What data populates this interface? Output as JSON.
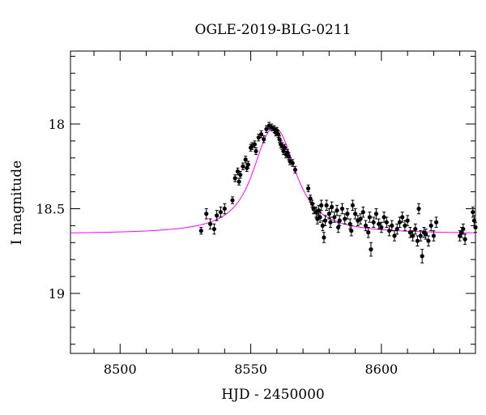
{
  "chart_data": {
    "type": "scatter",
    "title": "OGLE-2019-BLG-0211",
    "xlabel": "HJD - 2450000",
    "ylabel": "I magnitude",
    "xlim": [
      8481,
      8636
    ],
    "ylim": [
      18.0,
      19.0
    ],
    "y_inverted": true,
    "x_ticks": [
      8500,
      8550,
      8600
    ],
    "x_tick_labels": [
      "8500",
      "8550",
      "8600"
    ],
    "y_ticks": [
      18,
      18.5,
      19
    ],
    "y_tick_labels": [
      "18",
      "18.5",
      "19"
    ],
    "grid": false,
    "legend": "none",
    "colors": {
      "model": "#ff00ff",
      "data": "#000000"
    },
    "series": [
      {
        "type": "scatter",
        "points": [
          [
            8531.0,
            18.63,
            0.02
          ],
          [
            8533.0,
            18.53,
            0.03
          ],
          [
            8534.5,
            18.59,
            0.03
          ],
          [
            8536.0,
            18.62,
            0.03
          ],
          [
            8537.0,
            18.54,
            0.03
          ],
          [
            8538.5,
            18.52,
            0.03
          ],
          [
            8540.0,
            18.5,
            0.03
          ],
          [
            8543.0,
            18.45,
            0.02
          ],
          [
            8544.0,
            18.32,
            0.02
          ],
          [
            8545.0,
            18.28,
            0.02
          ],
          [
            8545.5,
            18.34,
            0.02
          ],
          [
            8546.0,
            18.3,
            0.02
          ],
          [
            8547.0,
            18.25,
            0.02
          ],
          [
            8548.0,
            18.21,
            0.02
          ],
          [
            8548.5,
            18.26,
            0.02
          ],
          [
            8549.0,
            18.24,
            0.02
          ],
          [
            8550.0,
            18.14,
            0.02
          ],
          [
            8550.5,
            18.13,
            0.02
          ],
          [
            8551.5,
            18.12,
            0.02
          ],
          [
            8552.0,
            18.16,
            0.02
          ],
          [
            8553.0,
            18.08,
            0.02
          ],
          [
            8554.0,
            18.06,
            0.02
          ],
          [
            8555.0,
            18.09,
            0.02
          ],
          [
            8556.0,
            18.03,
            0.02
          ],
          [
            8557.0,
            18.01,
            0.02
          ],
          [
            8558.0,
            18.02,
            0.02
          ],
          [
            8559.0,
            18.03,
            0.02
          ],
          [
            8559.5,
            18.05,
            0.02
          ],
          [
            8560.0,
            18.04,
            0.02
          ],
          [
            8560.5,
            18.06,
            0.02
          ],
          [
            8561.0,
            18.09,
            0.02
          ],
          [
            8561.5,
            18.12,
            0.02
          ],
          [
            8562.0,
            18.13,
            0.02
          ],
          [
            8562.5,
            18.16,
            0.02
          ],
          [
            8563.0,
            18.14,
            0.02
          ],
          [
            8563.5,
            18.18,
            0.02
          ],
          [
            8564.0,
            18.17,
            0.02
          ],
          [
            8564.5,
            18.19,
            0.02
          ],
          [
            8565.0,
            18.22,
            0.02
          ],
          [
            8566.0,
            18.23,
            0.02
          ],
          [
            8567.0,
            18.27,
            0.02
          ],
          [
            8572.0,
            18.38,
            0.02
          ],
          [
            8572.8,
            18.44,
            0.02
          ],
          [
            8573.5,
            18.47,
            0.02
          ],
          [
            8574.0,
            18.5,
            0.03
          ],
          [
            8575.0,
            18.52,
            0.03
          ],
          [
            8575.5,
            18.56,
            0.03
          ],
          [
            8576.0,
            18.51,
            0.03
          ],
          [
            8576.5,
            18.55,
            0.03
          ],
          [
            8577.0,
            18.48,
            0.03
          ],
          [
            8577.5,
            18.6,
            0.03
          ],
          [
            8578.0,
            18.67,
            0.03
          ],
          [
            8578.5,
            18.57,
            0.03
          ],
          [
            8579.0,
            18.48,
            0.03
          ],
          [
            8580.0,
            18.53,
            0.03
          ],
          [
            8580.5,
            18.58,
            0.03
          ],
          [
            8581.0,
            18.49,
            0.03
          ],
          [
            8582.0,
            18.55,
            0.03
          ],
          [
            8583.0,
            18.51,
            0.03
          ],
          [
            8583.5,
            18.61,
            0.03
          ],
          [
            8584.0,
            18.57,
            0.03
          ],
          [
            8585.0,
            18.5,
            0.03
          ],
          [
            8586.0,
            18.56,
            0.03
          ],
          [
            8587.0,
            18.53,
            0.03
          ],
          [
            8588.0,
            18.59,
            0.03
          ],
          [
            8588.5,
            18.63,
            0.03
          ],
          [
            8589.0,
            18.48,
            0.03
          ],
          [
            8590.0,
            18.53,
            0.03
          ],
          [
            8591.0,
            18.57,
            0.03
          ],
          [
            8592.0,
            18.56,
            0.03
          ],
          [
            8593.0,
            18.52,
            0.03
          ],
          [
            8594.0,
            18.6,
            0.03
          ],
          [
            8595.0,
            18.64,
            0.03
          ],
          [
            8595.5,
            18.55,
            0.03
          ],
          [
            8596.0,
            18.74,
            0.04
          ],
          [
            8597.0,
            18.58,
            0.03
          ],
          [
            8598.0,
            18.53,
            0.03
          ],
          [
            8599.0,
            18.59,
            0.03
          ],
          [
            8600.0,
            18.61,
            0.03
          ],
          [
            8601.0,
            18.55,
            0.03
          ],
          [
            8602.0,
            18.58,
            0.03
          ],
          [
            8603.0,
            18.63,
            0.03
          ],
          [
            8604.0,
            18.6,
            0.03
          ],
          [
            8605.0,
            18.66,
            0.03
          ],
          [
            8606.0,
            18.62,
            0.03
          ],
          [
            8607.0,
            18.58,
            0.03
          ],
          [
            8608.0,
            18.55,
            0.03
          ],
          [
            8609.0,
            18.6,
            0.03
          ],
          [
            8610.0,
            18.57,
            0.03
          ],
          [
            8611.0,
            18.64,
            0.03
          ],
          [
            8612.0,
            18.66,
            0.03
          ],
          [
            8613.0,
            18.62,
            0.03
          ],
          [
            8613.8,
            18.69,
            0.03
          ],
          [
            8614.3,
            18.5,
            0.03
          ],
          [
            8615.0,
            18.66,
            0.03
          ],
          [
            8615.6,
            18.78,
            0.04
          ],
          [
            8616.3,
            18.64,
            0.03
          ],
          [
            8617.0,
            18.65,
            0.03
          ],
          [
            8618.0,
            18.69,
            0.03
          ],
          [
            8619.0,
            18.6,
            0.03
          ],
          [
            8620.0,
            18.66,
            0.03
          ],
          [
            8621.0,
            18.58,
            0.03
          ],
          [
            8630.0,
            18.66,
            0.03
          ],
          [
            8630.7,
            18.64,
            0.03
          ],
          [
            8631.3,
            18.62,
            0.03
          ],
          [
            8632.0,
            18.68,
            0.03
          ],
          [
            8635.0,
            18.52,
            0.03
          ],
          [
            8635.5,
            18.57,
            0.03
          ],
          [
            8636.0,
            18.61,
            0.03
          ]
        ]
      }
    ],
    "model": {
      "type": "line",
      "baseline": 18.65,
      "peak_x": 8559.0,
      "peak_y": 18.02,
      "width": 7.5
    }
  }
}
